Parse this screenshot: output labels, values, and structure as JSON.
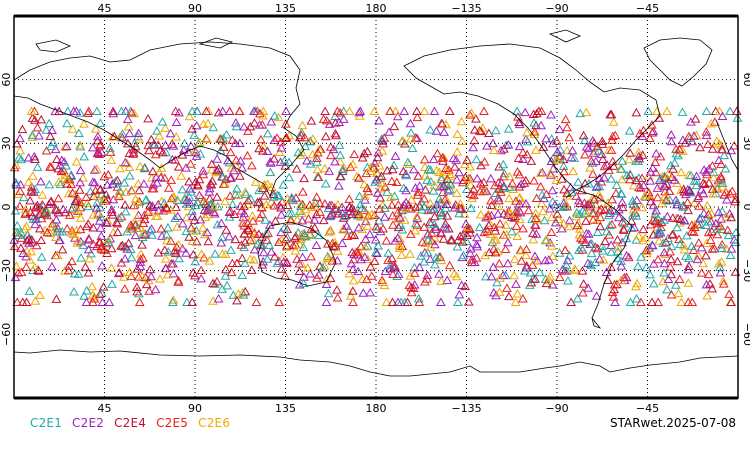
{
  "map": {
    "projection": "cylindrical-equidistant",
    "center_longitude": 180,
    "lat_range": [
      -90,
      90
    ],
    "lon_labels_top": [
      "45",
      "90",
      "135",
      "180",
      "−135",
      "−90",
      "−45"
    ],
    "lon_labels_bottom": [
      "45",
      "90",
      "135",
      "180",
      "−135",
      "−90",
      "−45"
    ],
    "lat_labels": [
      "60",
      "30",
      "0",
      "−30",
      "−60"
    ],
    "grid": true,
    "markers": "triangle",
    "marker_lat_range": [
      -45,
      45
    ]
  },
  "legend": {
    "items": [
      {
        "label": "C2E1",
        "color": "#22aaaa"
      },
      {
        "label": "C2E2",
        "color": "#a020c0"
      },
      {
        "label": "C2E4",
        "color": "#c01030"
      },
      {
        "label": "C2E5",
        "color": "#e82020"
      },
      {
        "label": "C2E6",
        "color": "#f0a800"
      }
    ]
  },
  "stamp": "STARwet.2025-07-08"
}
